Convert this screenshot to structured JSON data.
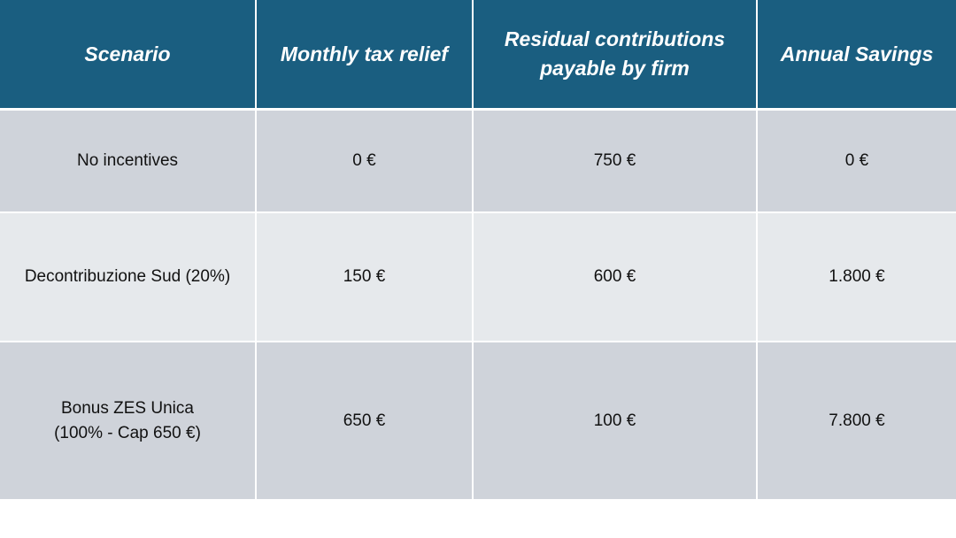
{
  "table": {
    "headers": [
      "Scenario",
      "Monthly tax relief",
      "Residual contributions\npayable by firm",
      "Annual Savings"
    ],
    "rows": [
      [
        "No incentives",
        "0 €",
        "750 €",
        "0 €"
      ],
      [
        "Decontribuzione Sud (20%)",
        "150 €",
        "600 €",
        "1.800 €"
      ],
      [
        "Bonus ZES Unica\n(100% - Cap 650 €)",
        "650 €",
        "100 €",
        "7.800 €"
      ]
    ]
  }
}
